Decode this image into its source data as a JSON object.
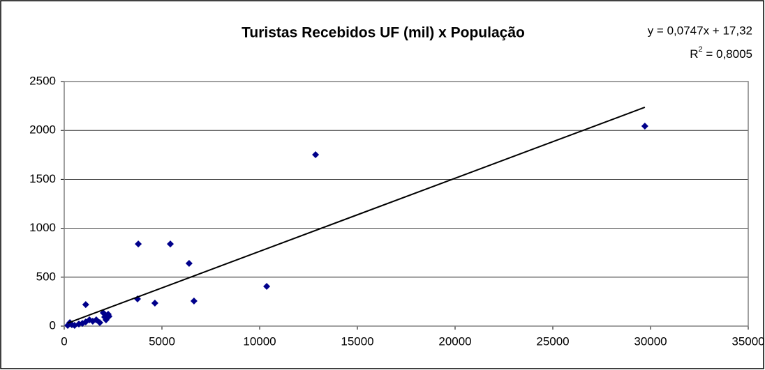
{
  "chart_data": {
    "type": "scatter",
    "title": "Turistas Recebidos UF (mil) x População",
    "equation_label": "y = 0,0747x + 17,32",
    "r2_label": [
      "R",
      "2",
      " = 0,8005"
    ],
    "trendline": {
      "slope": 0.0747,
      "intercept": 17.32,
      "color": "#000000"
    },
    "series": [
      {
        "color": "#00008b",
        "x": [
          180,
          290,
          390,
          530,
          750,
          930,
          1100,
          1100,
          1290,
          1460,
          1640,
          1820,
          2000,
          2070,
          2140,
          2250,
          2290,
          3750,
          3790,
          4640,
          5430,
          6390,
          6640,
          10360,
          12860,
          29710
        ],
        "values": [
          7,
          36,
          14,
          7,
          21,
          28,
          220,
          43,
          64,
          50,
          64,
          36,
          135,
          93,
          64,
          121,
          100,
          278,
          840,
          235,
          840,
          641,
          256,
          406,
          1752,
          2044
        ]
      }
    ],
    "xlim": [
      0,
      35000
    ],
    "xticks": [
      0,
      5000,
      10000,
      15000,
      20000,
      25000,
      30000,
      35000
    ],
    "ylim": [
      0,
      2500
    ],
    "yticks": [
      0,
      500,
      1000,
      1500,
      2000,
      2500
    ],
    "grid": true
  }
}
